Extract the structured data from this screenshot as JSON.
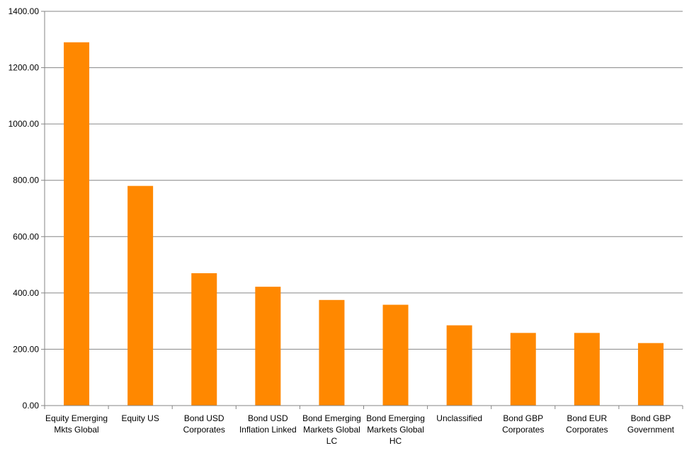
{
  "chart_data": {
    "type": "bar",
    "title": "",
    "xlabel": "",
    "ylabel": "",
    "ylim": [
      0,
      1400
    ],
    "ytick_step": 200,
    "ytick_labels": [
      "0.00",
      "200.00",
      "400.00",
      "600.00",
      "800.00",
      "1000.00",
      "1200.00",
      "1400.00"
    ],
    "grid": true,
    "legend": "none",
    "bar_color": "#ff8800",
    "categories": [
      [
        "Equity Emerging",
        "Mkts Global"
      ],
      [
        "Equity US"
      ],
      [
        "Bond USD",
        "Corporates"
      ],
      [
        "Bond USD",
        "Inflation Linked"
      ],
      [
        "Bond Emerging",
        "Markets Global",
        "LC"
      ],
      [
        "Bond Emerging",
        "Markets Global",
        "HC"
      ],
      [
        "Unclassified"
      ],
      [
        "Bond GBP",
        "Corporates"
      ],
      [
        "Bond EUR",
        "Corporates"
      ],
      [
        "Bond GBP",
        "Government"
      ]
    ],
    "values": [
      1290,
      780,
      470,
      422,
      375,
      358,
      285,
      258,
      258,
      222
    ]
  }
}
